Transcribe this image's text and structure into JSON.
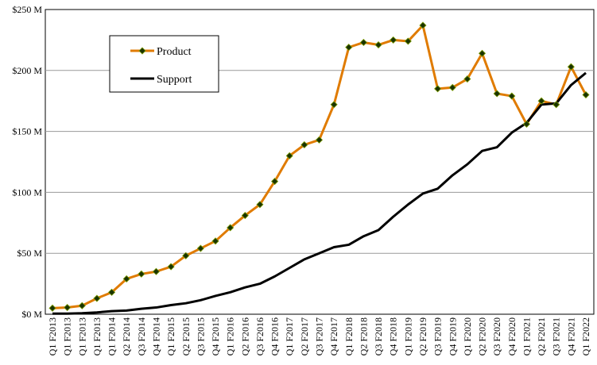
{
  "chart_data": {
    "type": "line",
    "title": "",
    "xlabel": "",
    "ylabel": "",
    "ylim": [
      0,
      250
    ],
    "yticks": [
      {
        "value": 0,
        "label": "$0 M"
      },
      {
        "value": 50,
        "label": "$50 M"
      },
      {
        "value": 100,
        "label": "$100 M"
      },
      {
        "value": 150,
        "label": "$150 M"
      },
      {
        "value": 200,
        "label": "$200 M"
      },
      {
        "value": 250,
        "label": "$250 M"
      }
    ],
    "grid": true,
    "legend_position": "top-left",
    "x": [
      "Q1 F2013",
      "Q1 F2013",
      "Q1 F2013",
      "Q1 F2013",
      "Q1 F2014",
      "Q2 F2014",
      "Q3 F2014",
      "Q4 F2014",
      "Q1 F2015",
      "Q2 F2015",
      "Q3 F2015",
      "Q4 F2015",
      "Q1 F2016",
      "Q2 F2016",
      "Q3 F2016",
      "Q4 F2016",
      "Q1 F2017",
      "Q2 F2017",
      "Q3 F2017",
      "Q4 F2017",
      "Q1 F2018",
      "Q2 F2018",
      "Q3 F2018",
      "Q4 F2018",
      "Q1 F2019",
      "Q2 F2019",
      "Q3 F2019",
      "Q4 F2019",
      "Q1 F2020",
      "Q2 F2020",
      "Q3 F2020",
      "Q4 F2020",
      "Q1 F2021",
      "Q2 F2021",
      "Q3 F2021",
      "Q4 F2021",
      "Q1 F2022"
    ],
    "series": [
      {
        "name": "Product",
        "color": "#e07b00",
        "marker_color": "#1a3300",
        "values": [
          5,
          5.5,
          7,
          13,
          18,
          29,
          33,
          35,
          39,
          48,
          54,
          60,
          71,
          81,
          90,
          109,
          130,
          139,
          143,
          172,
          219,
          223,
          221,
          225,
          224,
          237,
          185,
          186,
          193,
          214,
          181,
          179,
          156,
          175,
          172,
          203,
          180
        ]
      },
      {
        "name": "Support",
        "color": "#000000",
        "values": [
          0.5,
          0.5,
          0.8,
          1.5,
          2.5,
          3,
          4.5,
          5.5,
          7.5,
          9,
          11.5,
          15,
          18,
          22,
          25,
          31,
          38,
          45,
          50,
          55,
          57,
          64,
          69,
          80,
          90,
          99,
          103,
          114,
          123,
          134,
          137,
          149,
          157,
          172,
          173,
          188,
          198
        ]
      }
    ]
  }
}
